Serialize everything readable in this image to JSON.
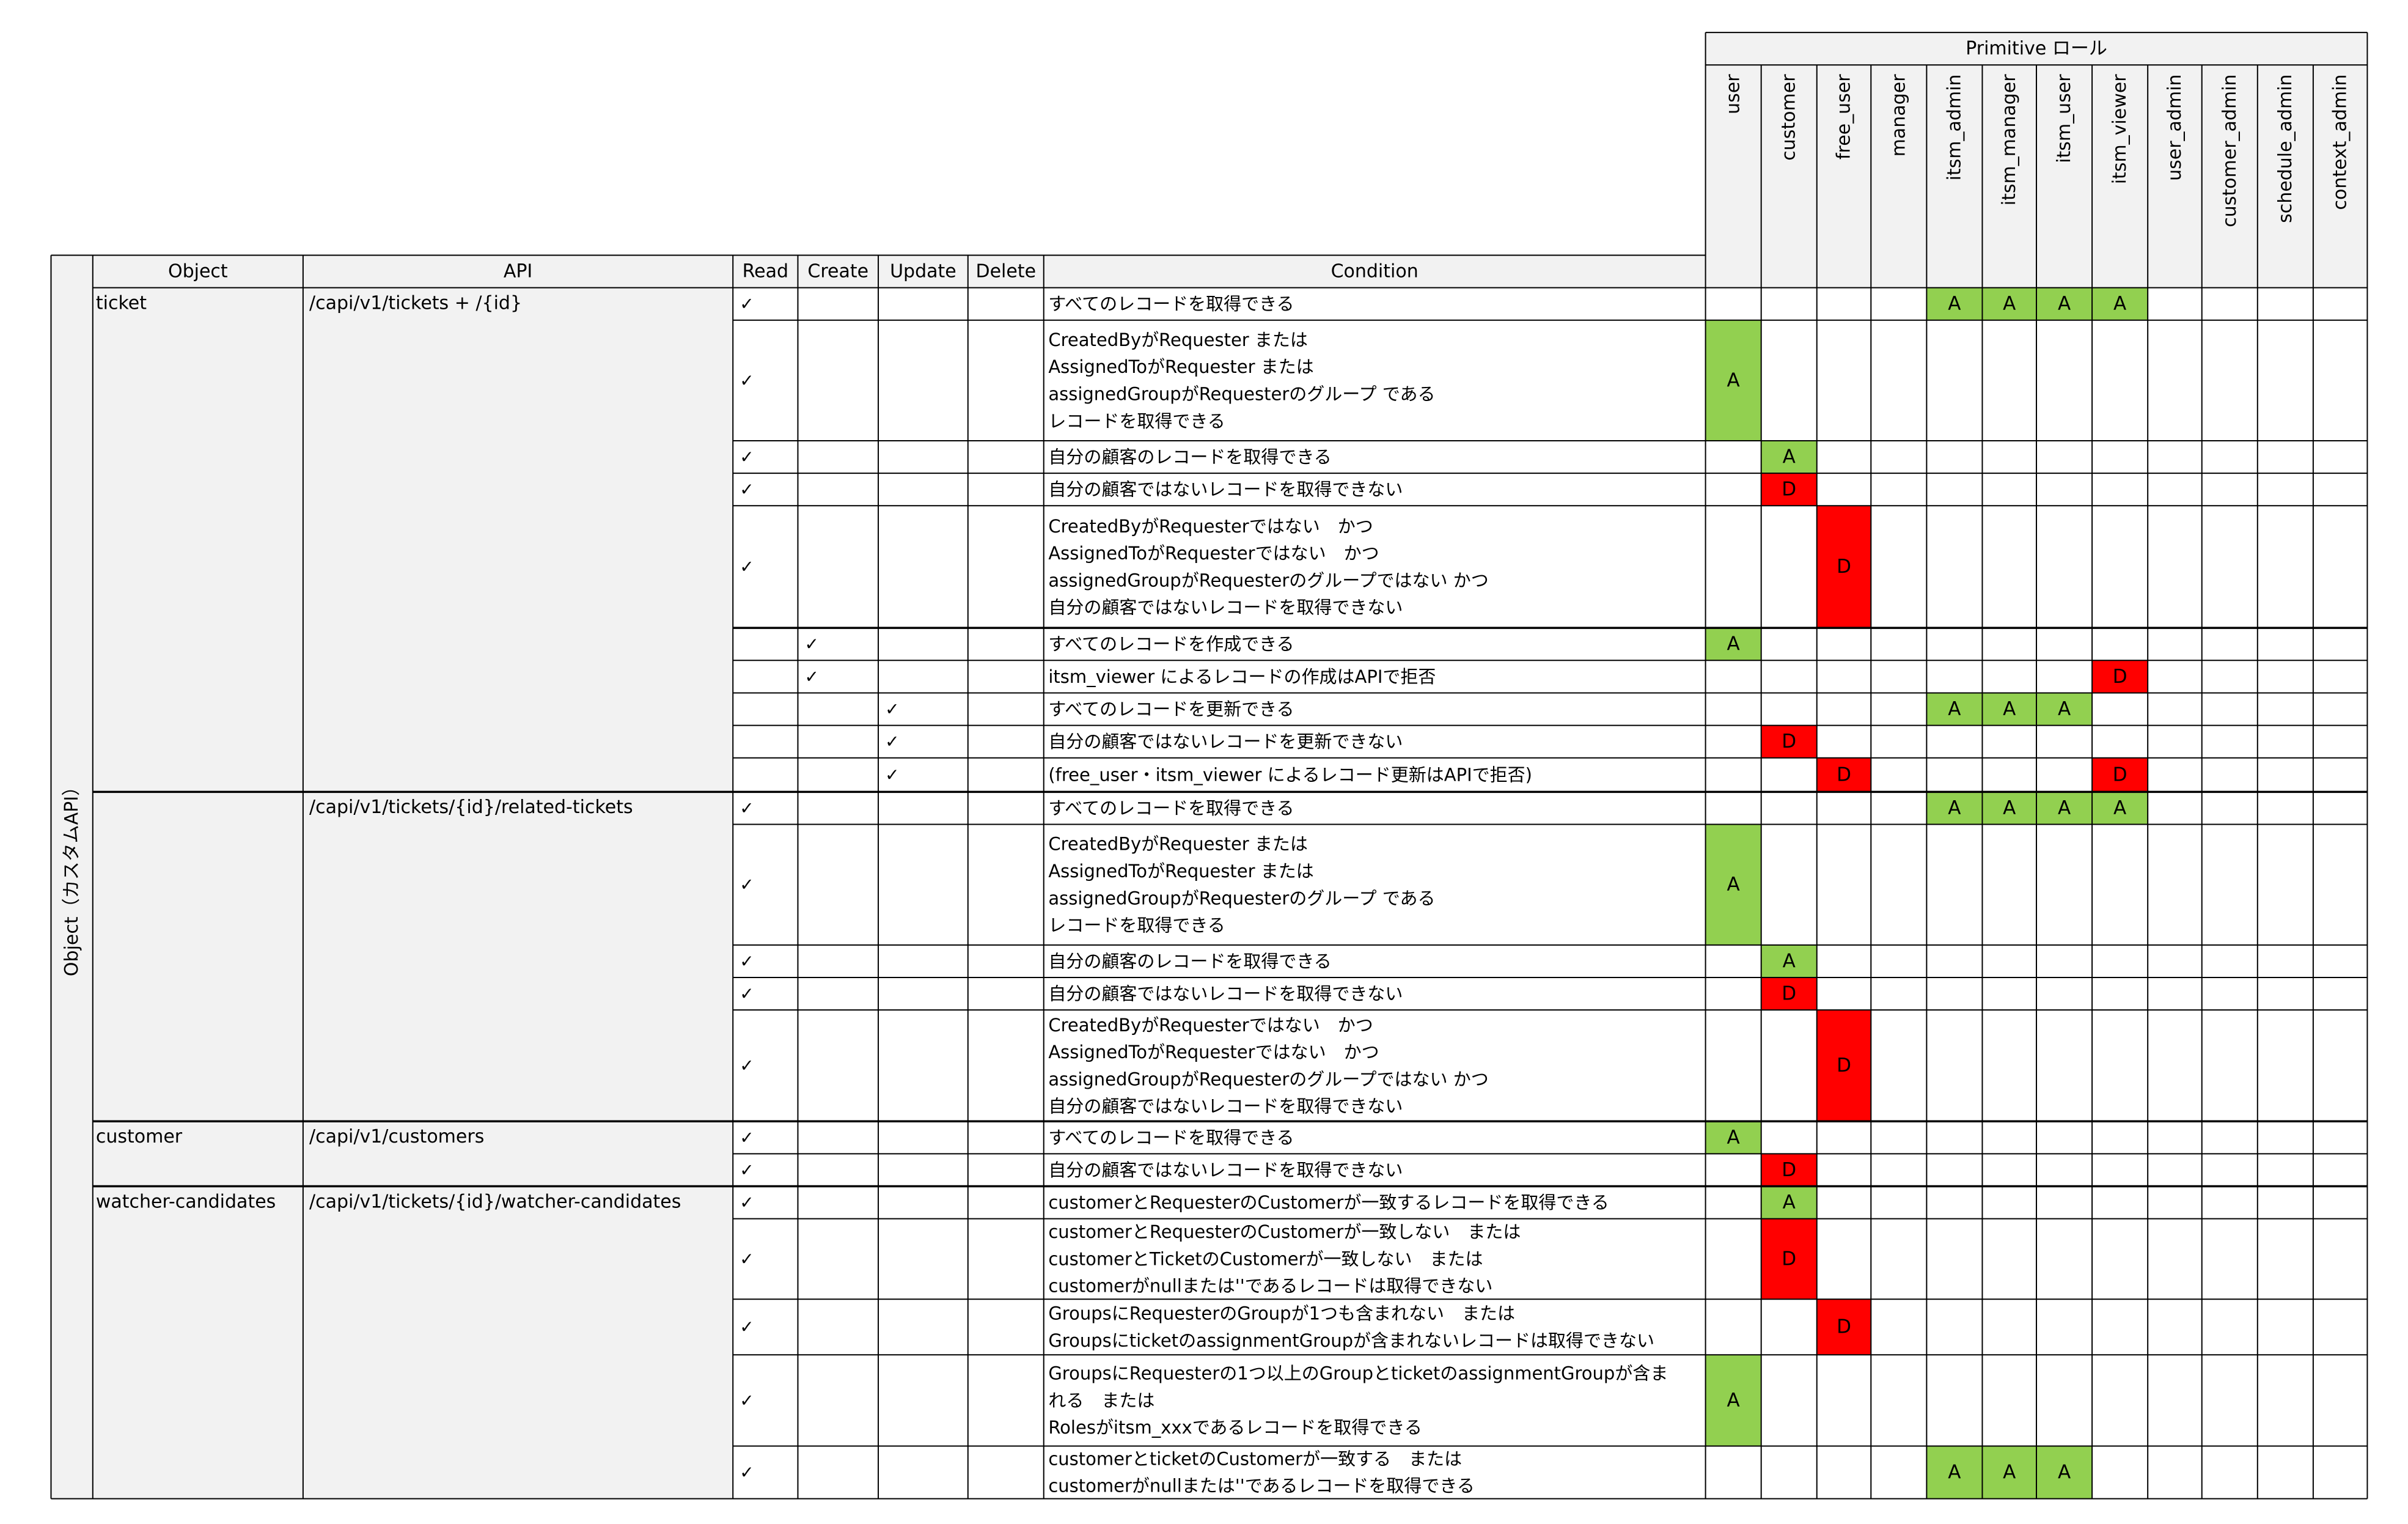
{
  "colors": {
    "allow": "#92d050",
    "deny": "#ff0000",
    "header_bg": "#f2f2f2",
    "grid": "#000000"
  },
  "primitive_header": "Primitive ロール",
  "side_label": "Object（カスタムAPI）",
  "columns": {
    "object": "Object",
    "api": "API",
    "read": "Read",
    "create": "Create",
    "update": "Update",
    "delete": "Delete",
    "condition": "Condition"
  },
  "roles": [
    "user",
    "customer",
    "free_user",
    "manager",
    "itsm_admin",
    "itsm_manager",
    "itsm_user",
    "itsm_viewer",
    "user_admin",
    "customer_admin",
    "schedule_admin",
    "context_admin"
  ],
  "check_mark": "✓",
  "object_groups": [
    {
      "object": "ticket",
      "api": "/capi/v1/tickets + /{id}"
    },
    {
      "object": "",
      "api": "/capi/v1/tickets/{id}/related-tickets"
    },
    {
      "object": "customer",
      "api": "/capi/v1/customers"
    },
    {
      "object": "watcher-candidates",
      "api": "/capi/v1/tickets/{id}/watcher-candidates"
    }
  ],
  "rows": [
    {
      "crud": "R",
      "condition": [
        "すべてのレコードを取得できる"
      ],
      "perms": {
        "itsm_admin": "A",
        "itsm_manager": "A",
        "itsm_user": "A",
        "itsm_viewer": "A"
      }
    },
    {
      "crud": "R",
      "condition": [
        "CreatedByがRequester または",
        "AssignedToがRequester または",
        "assignedGroupがRequesterのグループ である",
        "レコードを取得できる"
      ],
      "perms": {
        "user": "A"
      }
    },
    {
      "crud": "R",
      "condition": [
        "自分の顧客のレコードを取得できる"
      ],
      "perms": {
        "customer": "A"
      }
    },
    {
      "crud": "R",
      "condition": [
        "自分の顧客ではないレコードを取得できない"
      ],
      "perms": {
        "customer": "D"
      }
    },
    {
      "crud": "R",
      "condition": [
        "CreatedByがRequesterではない　かつ",
        "AssignedToがRequesterではない　かつ",
        "assignedGroupがRequesterのグループではない かつ",
        "自分の顧客ではないレコードを取得できない"
      ],
      "perms": {
        "free_user": "D"
      }
    },
    {
      "crud": "C",
      "condition": [
        "すべてのレコードを作成できる"
      ],
      "perms": {
        "user": "A"
      }
    },
    {
      "crud": "C",
      "condition": [
        "itsm_viewer によるレコードの作成はAPIで拒否"
      ],
      "perms": {
        "itsm_viewer": "D"
      }
    },
    {
      "crud": "U",
      "condition": [
        "すべてのレコードを更新できる"
      ],
      "perms": {
        "itsm_admin": "A",
        "itsm_manager": "A",
        "itsm_user": "A"
      }
    },
    {
      "crud": "U",
      "condition": [
        "自分の顧客ではないレコードを更新できない"
      ],
      "perms": {
        "customer": "D"
      }
    },
    {
      "crud": "U",
      "condition": [
        "(free_user・itsm_viewer によるレコード更新はAPIで拒否)"
      ],
      "perms": {
        "free_user": "D",
        "itsm_viewer": "D"
      }
    },
    {
      "crud": "R",
      "condition": [
        "すべてのレコードを取得できる"
      ],
      "perms": {
        "itsm_admin": "A",
        "itsm_manager": "A",
        "itsm_user": "A",
        "itsm_viewer": "A"
      }
    },
    {
      "crud": "R",
      "condition": [
        "CreatedByがRequester または",
        "AssignedToがRequester または",
        "assignedGroupがRequesterのグループ である",
        "レコードを取得できる"
      ],
      "perms": {
        "user": "A"
      }
    },
    {
      "crud": "R",
      "condition": [
        "自分の顧客のレコードを取得できる"
      ],
      "perms": {
        "customer": "A"
      }
    },
    {
      "crud": "R",
      "condition": [
        "自分の顧客ではないレコードを取得できない"
      ],
      "perms": {
        "customer": "D"
      }
    },
    {
      "crud": "R",
      "condition": [
        "CreatedByがRequesterではない　かつ",
        "AssignedToがRequesterではない　かつ",
        "assignedGroupがRequesterのグループではない かつ",
        "自分の顧客ではないレコードを取得できない"
      ],
      "perms": {
        "free_user": "D"
      }
    },
    {
      "crud": "R",
      "condition": [
        "すべてのレコードを取得できる"
      ],
      "perms": {
        "user": "A"
      }
    },
    {
      "crud": "R",
      "condition": [
        "自分の顧客ではないレコードを取得できない"
      ],
      "perms": {
        "customer": "D"
      }
    },
    {
      "crud": "R",
      "condition": [
        "customerとRequesterのCustomerが一致するレコードを取得できる"
      ],
      "perms": {
        "customer": "A"
      }
    },
    {
      "crud": "R",
      "condition": [
        "customerとRequesterのCustomerが一致しない　または",
        "customerとTicketのCustomerが一致しない　または",
        "customerがnullまたは''であるレコードは取得できない"
      ],
      "perms": {
        "customer": "D"
      }
    },
    {
      "crud": "R",
      "condition": [
        "GroupsにRequesterのGroupが1つも含まれない　または",
        "GroupsにticketのassignmentGroupが含まれないレコードは取得できない"
      ],
      "perms": {
        "free_user": "D"
      }
    },
    {
      "crud": "R",
      "condition": [
        "GroupsにRequesterの1つ以上のGroupとticketのassignmentGroupが含ま",
        "れる　または",
        "Rolesがitsm_xxxであるレコードを取得できる"
      ],
      "perms": {
        "user": "A"
      }
    },
    {
      "crud": "R",
      "condition": [
        "customerとticketのCustomerが一致する　または",
        "customerがnullまたは''であるレコードを取得できる"
      ],
      "perms": {
        "itsm_admin": "A",
        "itsm_manager": "A",
        "itsm_user": "A"
      }
    }
  ]
}
